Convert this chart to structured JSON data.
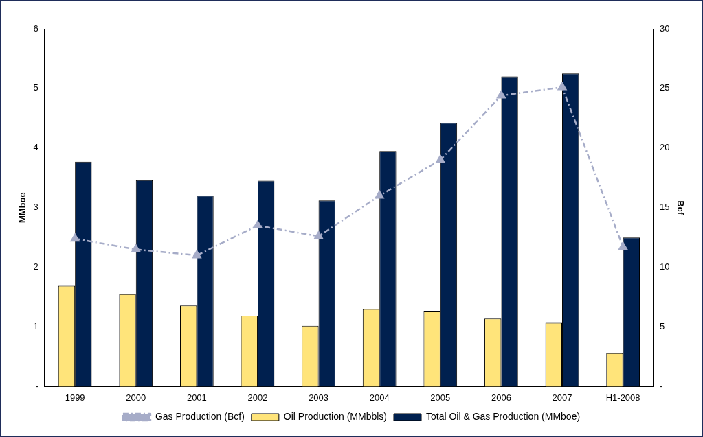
{
  "chart_data": {
    "type": "bar",
    "categories": [
      "1999",
      "2000",
      "2001",
      "2002",
      "2003",
      "2004",
      "2005",
      "2006",
      "2007",
      "H1-2008"
    ],
    "ylabel": "MMboe",
    "y2label": "Bcf",
    "series": [
      {
        "name": "Oil Production (MMbbls)",
        "color": "#ffe47a",
        "values": [
          1.69,
          1.55,
          1.36,
          1.19,
          1.02,
          1.3,
          1.26,
          1.14,
          1.07,
          0.56
        ]
      },
      {
        "name": "Total Oil & Gas Production (MMboe)",
        "color": "#00204f",
        "values": [
          3.77,
          3.46,
          3.2,
          3.45,
          3.12,
          3.95,
          4.42,
          5.2,
          5.25,
          2.5
        ]
      },
      {
        "name": "Gas Production (Bcf)",
        "type": "line",
        "axis": "y2",
        "color": "#a6acc8",
        "marker": "triangle",
        "line_style": "dashed",
        "values": [
          12.4,
          11.5,
          11.0,
          13.5,
          12.6,
          16.0,
          19.0,
          24.4,
          25.1,
          11.7
        ]
      }
    ],
    "ylim": [
      0,
      6
    ],
    "yticks": [
      {
        "value": 0,
        "label": "-"
      },
      1,
      2,
      3,
      4,
      5,
      6
    ],
    "y2lim": [
      0,
      30
    ],
    "y2ticks": [
      {
        "value": 0,
        "label": "-"
      },
      5,
      10,
      15,
      20,
      25,
      30
    ],
    "grid": false,
    "legend": "bottom"
  }
}
